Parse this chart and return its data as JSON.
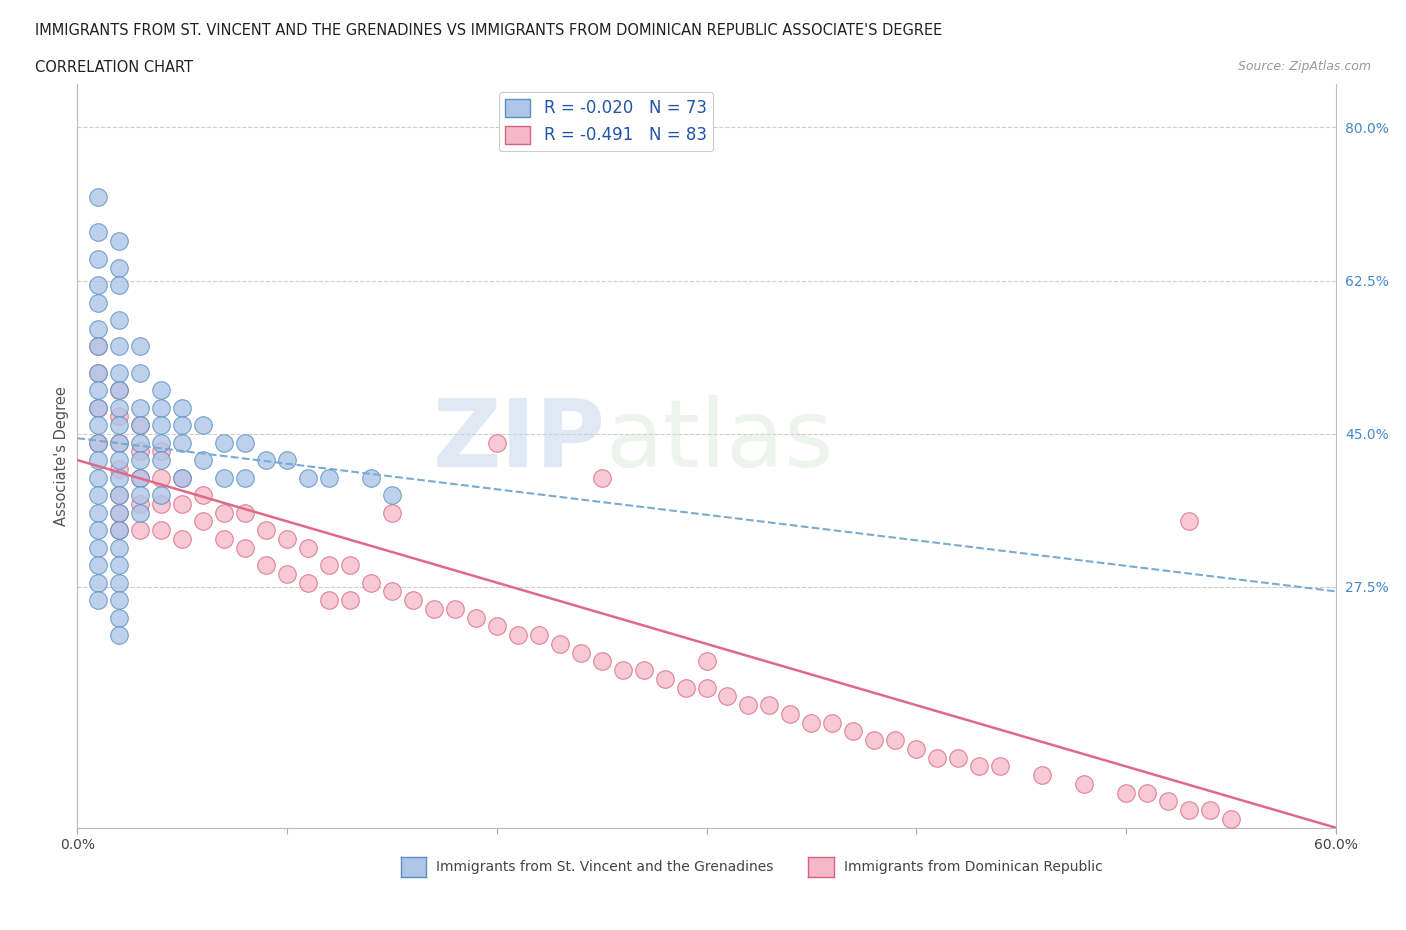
{
  "title_line1": "IMMIGRANTS FROM ST. VINCENT AND THE GRENADINES VS IMMIGRANTS FROM DOMINICAN REPUBLIC ASSOCIATE'S DEGREE",
  "title_line2": "CORRELATION CHART",
  "source": "Source: ZipAtlas.com",
  "ylabel": "Associate's Degree",
  "xlim": [
    0.0,
    0.6
  ],
  "ylim": [
    0.0,
    0.85
  ],
  "yticks_right": [
    0.275,
    0.45,
    0.625,
    0.8
  ],
  "ytick_labels_right": [
    "27.5%",
    "45.0%",
    "62.5%",
    "80.0%"
  ],
  "blue_R": -0.02,
  "blue_N": 73,
  "pink_R": -0.491,
  "pink_N": 83,
  "blue_color": "#aec6e8",
  "pink_color": "#f5b8c8",
  "blue_edge": "#5a8fc0",
  "pink_edge": "#d96080",
  "trend_blue_color": "#7aaad0",
  "trend_pink_color": "#e06888",
  "watermark_zip": "ZIP",
  "watermark_atlas": "atlas",
  "blue_scatter_x": [
    0.01,
    0.01,
    0.01,
    0.01,
    0.01,
    0.01,
    0.01,
    0.01,
    0.01,
    0.01,
    0.01,
    0.01,
    0.01,
    0.01,
    0.01,
    0.01,
    0.01,
    0.01,
    0.01,
    0.01,
    0.01,
    0.02,
    0.02,
    0.02,
    0.02,
    0.02,
    0.02,
    0.02,
    0.02,
    0.02,
    0.02,
    0.02,
    0.02,
    0.02,
    0.02,
    0.02,
    0.02,
    0.02,
    0.02,
    0.02,
    0.02,
    0.02,
    0.03,
    0.03,
    0.03,
    0.03,
    0.03,
    0.03,
    0.03,
    0.03,
    0.03,
    0.04,
    0.04,
    0.04,
    0.04,
    0.04,
    0.04,
    0.05,
    0.05,
    0.05,
    0.05,
    0.06,
    0.06,
    0.07,
    0.07,
    0.08,
    0.08,
    0.09,
    0.1,
    0.11,
    0.12,
    0.14,
    0.15
  ],
  "blue_scatter_y": [
    0.72,
    0.68,
    0.65,
    0.62,
    0.6,
    0.57,
    0.55,
    0.52,
    0.5,
    0.48,
    0.46,
    0.44,
    0.42,
    0.4,
    0.38,
    0.36,
    0.34,
    0.32,
    0.3,
    0.28,
    0.26,
    0.67,
    0.64,
    0.62,
    0.58,
    0.55,
    0.52,
    0.5,
    0.48,
    0.46,
    0.44,
    0.42,
    0.4,
    0.38,
    0.36,
    0.34,
    0.32,
    0.3,
    0.28,
    0.26,
    0.24,
    0.22,
    0.55,
    0.52,
    0.48,
    0.46,
    0.44,
    0.42,
    0.4,
    0.38,
    0.36,
    0.5,
    0.48,
    0.46,
    0.44,
    0.42,
    0.38,
    0.48,
    0.46,
    0.44,
    0.4,
    0.46,
    0.42,
    0.44,
    0.4,
    0.44,
    0.4,
    0.42,
    0.42,
    0.4,
    0.4,
    0.4,
    0.38
  ],
  "pink_scatter_x": [
    0.01,
    0.01,
    0.01,
    0.01,
    0.02,
    0.02,
    0.02,
    0.02,
    0.02,
    0.02,
    0.02,
    0.03,
    0.03,
    0.03,
    0.03,
    0.03,
    0.04,
    0.04,
    0.04,
    0.04,
    0.05,
    0.05,
    0.05,
    0.06,
    0.06,
    0.07,
    0.07,
    0.08,
    0.08,
    0.09,
    0.09,
    0.1,
    0.1,
    0.11,
    0.11,
    0.12,
    0.12,
    0.13,
    0.13,
    0.14,
    0.15,
    0.16,
    0.17,
    0.18,
    0.19,
    0.2,
    0.21,
    0.22,
    0.23,
    0.24,
    0.25,
    0.26,
    0.27,
    0.28,
    0.29,
    0.3,
    0.31,
    0.32,
    0.33,
    0.34,
    0.35,
    0.36,
    0.37,
    0.38,
    0.39,
    0.4,
    0.41,
    0.42,
    0.43,
    0.44,
    0.46,
    0.48,
    0.5,
    0.51,
    0.52,
    0.53,
    0.54,
    0.55,
    0.3,
    0.15,
    0.2,
    0.25,
    0.53
  ],
  "pink_scatter_y": [
    0.55,
    0.52,
    0.48,
    0.44,
    0.5,
    0.47,
    0.44,
    0.41,
    0.38,
    0.36,
    0.34,
    0.46,
    0.43,
    0.4,
    0.37,
    0.34,
    0.43,
    0.4,
    0.37,
    0.34,
    0.4,
    0.37,
    0.33,
    0.38,
    0.35,
    0.36,
    0.33,
    0.36,
    0.32,
    0.34,
    0.3,
    0.33,
    0.29,
    0.32,
    0.28,
    0.3,
    0.26,
    0.3,
    0.26,
    0.28,
    0.27,
    0.26,
    0.25,
    0.25,
    0.24,
    0.23,
    0.22,
    0.22,
    0.21,
    0.2,
    0.19,
    0.18,
    0.18,
    0.17,
    0.16,
    0.16,
    0.15,
    0.14,
    0.14,
    0.13,
    0.12,
    0.12,
    0.11,
    0.1,
    0.1,
    0.09,
    0.08,
    0.08,
    0.07,
    0.07,
    0.06,
    0.05,
    0.04,
    0.04,
    0.03,
    0.02,
    0.02,
    0.01,
    0.19,
    0.36,
    0.44,
    0.4,
    0.35
  ],
  "blue_trend_x": [
    0.0,
    0.6
  ],
  "blue_trend_y": [
    0.445,
    0.27
  ],
  "pink_trend_x": [
    0.0,
    0.6
  ],
  "pink_trend_y": [
    0.42,
    0.0
  ]
}
